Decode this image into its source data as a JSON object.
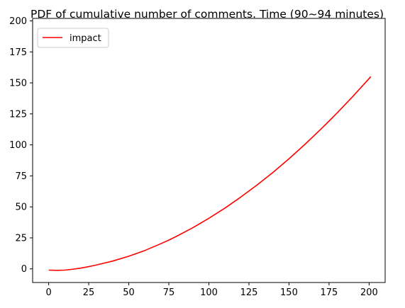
{
  "chart_data": {
    "type": "line",
    "title": "PDF of cumulative number of comments. Time (90~94 minutes)",
    "xlabel": "",
    "ylabel": "",
    "xlim": [
      -10,
      210
    ],
    "ylim": [
      -11,
      202
    ],
    "xticks": [
      0,
      25,
      50,
      75,
      100,
      125,
      150,
      175,
      200
    ],
    "yticks": [
      0,
      25,
      50,
      75,
      100,
      125,
      150,
      175,
      200
    ],
    "grid": false,
    "legend_position": "top-left",
    "series": [
      {
        "name": "impact",
        "color": "#ff0000",
        "x": [
          0,
          5,
          10,
          15,
          20,
          25,
          30,
          40,
          50,
          60,
          70,
          75,
          80,
          90,
          100,
          110,
          120,
          125,
          130,
          140,
          150,
          160,
          170,
          175,
          180,
          190,
          200,
          201
        ],
        "y": [
          -1,
          -1.2,
          -1,
          -0.3,
          0.6,
          1.8,
          3.2,
          6.3,
          10.2,
          14.8,
          20.3,
          23.2,
          26.4,
          33.2,
          40.8,
          49.0,
          58.0,
          62.8,
          67.6,
          77.8,
          88.8,
          100.5,
          112.8,
          119.2,
          125.7,
          139.3,
          153.5,
          155.0
        ]
      }
    ]
  }
}
